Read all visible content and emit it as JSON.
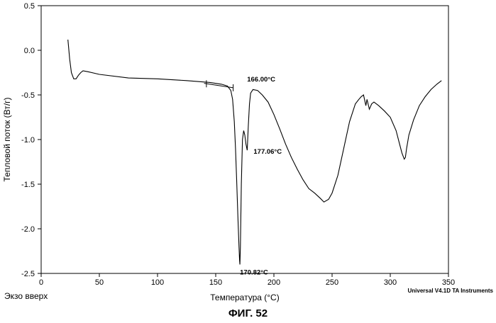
{
  "chart_data": {
    "type": "line",
    "xlabel": "Температура (°C)",
    "ylabel": "Тепловой поток (Вт/г)",
    "xlim": [
      0,
      350
    ],
    "ylim": [
      -2.5,
      0.5
    ],
    "x_ticks": [
      0,
      50,
      100,
      150,
      200,
      250,
      300,
      350
    ],
    "y_ticks": [
      0.5,
      0.0,
      -0.5,
      -1.0,
      -1.5,
      -2.0,
      -2.5
    ],
    "x_tick_labels": [
      "0",
      "50",
      "100",
      "150",
      "200",
      "250",
      "300",
      "350"
    ],
    "y_tick_labels": [
      "0.5",
      "0.0",
      "-0.5",
      "-1.0",
      "-1.5",
      "-2.0",
      "-2.5"
    ],
    "grid": false,
    "series": [
      {
        "x": [
          23.0,
          23.5,
          24.5,
          26,
          28,
          30,
          32,
          34,
          36,
          40,
          50,
          75,
          100,
          125,
          145,
          155,
          160,
          163,
          164.5,
          166,
          167,
          168,
          169,
          170,
          170.5,
          170.82,
          171.2,
          172,
          173,
          174,
          175,
          176,
          177.06,
          178,
          179,
          180,
          182,
          186,
          190,
          195,
          200,
          205,
          210,
          215,
          220,
          225,
          230,
          235,
          240,
          243,
          247,
          250,
          255,
          260,
          265,
          270,
          273,
          275,
          277,
          279,
          280,
          282,
          284,
          286,
          290,
          295,
          300,
          305,
          308,
          310,
          312,
          313,
          314,
          316,
          320,
          325,
          330,
          335,
          340,
          344
        ],
        "y": [
          0.12,
          0.05,
          -0.1,
          -0.25,
          -0.32,
          -0.32,
          -0.28,
          -0.25,
          -0.23,
          -0.24,
          -0.27,
          -0.31,
          -0.32,
          -0.34,
          -0.36,
          -0.38,
          -0.4,
          -0.45,
          -0.55,
          -0.8,
          -1.1,
          -1.45,
          -1.85,
          -2.2,
          -2.35,
          -2.4,
          -2.2,
          -1.5,
          -1.0,
          -0.9,
          -0.95,
          -1.05,
          -1.12,
          -0.85,
          -0.6,
          -0.48,
          -0.44,
          -0.45,
          -0.5,
          -0.58,
          -0.72,
          -0.88,
          -1.05,
          -1.2,
          -1.33,
          -1.45,
          -1.55,
          -1.6,
          -1.66,
          -1.7,
          -1.67,
          -1.6,
          -1.4,
          -1.1,
          -0.8,
          -0.6,
          -0.55,
          -0.52,
          -0.5,
          -0.62,
          -0.55,
          -0.66,
          -0.6,
          -0.58,
          -0.62,
          -0.68,
          -0.75,
          -0.9,
          -1.05,
          -1.15,
          -1.22,
          -1.2,
          -1.1,
          -0.95,
          -0.78,
          -0.62,
          -0.52,
          -0.44,
          -0.38,
          -0.34
        ]
      }
    ],
    "baseline": {
      "x": [
        140,
        165
      ],
      "y": [
        -0.37,
        -0.42
      ]
    },
    "baseline_markers": [
      {
        "x": 142,
        "y": -0.375
      },
      {
        "x": 165,
        "y": -0.42
      }
    ],
    "annotations": [
      {
        "text": "166.00°C",
        "x": 166.0,
        "y": -0.42
      },
      {
        "text": "177.06°C",
        "x": 177.06,
        "y": -1.12
      },
      {
        "text": "170.82°C",
        "x": 170.82,
        "y": -2.4
      }
    ]
  },
  "footer": {
    "left_text": "Экзо вверх",
    "right_text": "Universal V4.1D TA Instruments",
    "caption": "ФИГ. 52"
  }
}
